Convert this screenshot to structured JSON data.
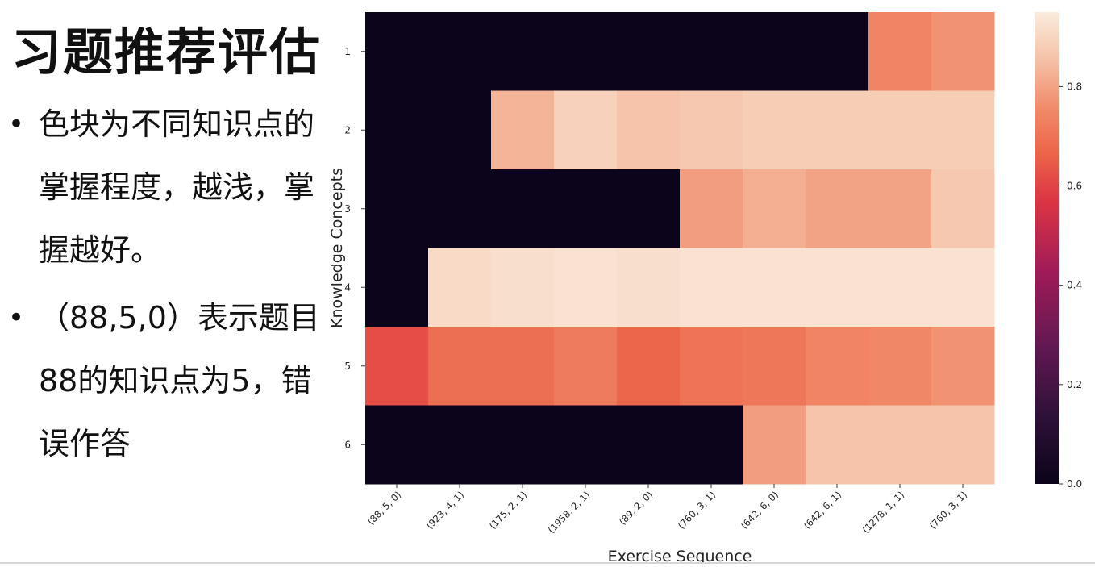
{
  "slide": {
    "title": "习题推荐评估",
    "bullets": [
      "色块为不同知识点的掌握程度，越浅，掌握越好。",
      "（88,5,0）表示题目88的知识点为5，错误作答"
    ]
  },
  "chart_data": {
    "type": "heatmap",
    "xlabel": "Exercise Sequence",
    "ylabel": "Knowledge Concepts",
    "x_categories": [
      "(88, 5, 0)",
      "(923, 4, 1)",
      "(175, 2, 1)",
      "(1958, 2, 1)",
      "(89, 2, 0)",
      "(760, 3, 1)",
      "(642, 6, 0)",
      "(642, 6, 1)",
      "(1278, 1, 1)",
      "(760, 3, 1)"
    ],
    "y_categories": [
      "1",
      "2",
      "3",
      "4",
      "5",
      "6"
    ],
    "values": [
      [
        0,
        0,
        0,
        0,
        0,
        0,
        0,
        0,
        0.74,
        0.77
      ],
      [
        0,
        0,
        0.83,
        0.89,
        0.86,
        0.87,
        0.88,
        0.88,
        0.88,
        0.88
      ],
      [
        0,
        0,
        0,
        0,
        0,
        0.79,
        0.82,
        0.8,
        0.8,
        0.87
      ],
      [
        0,
        0.91,
        0.92,
        0.93,
        0.92,
        0.93,
        0.93,
        0.93,
        0.93,
        0.93
      ],
      [
        0.62,
        0.69,
        0.69,
        0.72,
        0.67,
        0.7,
        0.71,
        0.74,
        0.75,
        0.77
      ],
      [
        0,
        0,
        0,
        0,
        0,
        0,
        0.79,
        0.86,
        0.86,
        0.86
      ]
    ],
    "colorbar": {
      "range": [
        0,
        0.95
      ],
      "ticks": [
        0.0,
        0.2,
        0.4,
        0.6,
        0.8
      ]
    },
    "colormap": "rocket",
    "grid": false
  }
}
